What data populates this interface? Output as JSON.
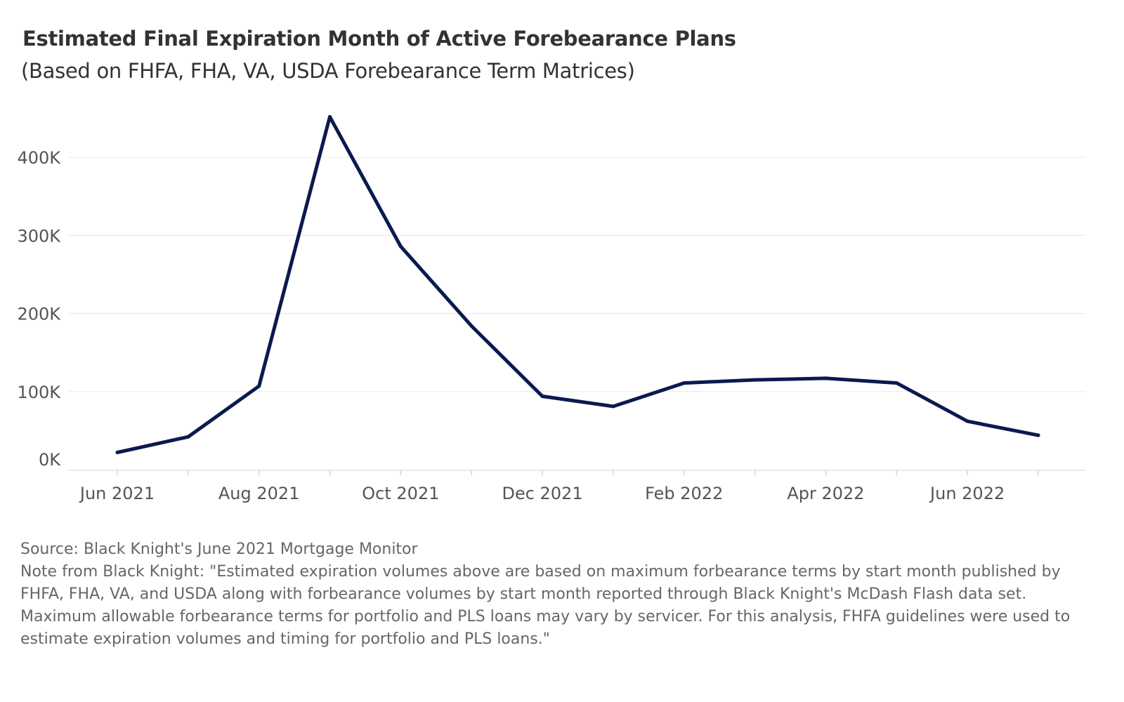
{
  "chart_data": {
    "type": "line",
    "title": "Estimated Final Expiration Month of Active Forebearance Plans",
    "subtitle": "(Based on FHFA, FHA, VA, USDA Forebearance Term Matrices)",
    "xlabel": "",
    "ylabel": "",
    "x": [
      "2021-06",
      "2021-07",
      "2021-08",
      "2021-09",
      "2021-10",
      "2021-11",
      "2021-12",
      "2022-01",
      "2022-02",
      "2022-03",
      "2022-04",
      "2022-05",
      "2022-06",
      "2022-07"
    ],
    "series": [
      {
        "values": [
          22000,
          42000,
          107000,
          452000,
          286000,
          184000,
          94000,
          81000,
          111000,
          115000,
          117000,
          111000,
          62000,
          44000
        ],
        "color": "#0a1a4f"
      }
    ],
    "x_tick_labels": [
      "Jun 2021",
      "Aug 2021",
      "Oct 2021",
      "Dec 2021",
      "Feb 2022",
      "Apr 2022",
      "Jun 2022"
    ],
    "y_ticks": [
      0,
      100000,
      200000,
      300000,
      400000
    ],
    "y_tick_labels": [
      "0K",
      "100K",
      "200K",
      "300K",
      "400K"
    ],
    "ylim": [
      0,
      452000
    ],
    "grid": true,
    "legend": "none"
  },
  "footer": {
    "source": "Source: Black Knight's June 2021 Mortgage Monitor",
    "note": "Note from Black Knight: \"Estimated expiration volumes above are based on maximum forbearance terms by start month published by FHFA, FHA, VA, and USDA along with forbearance volumes by start month reported through Black Knight's McDash Flash data set. Maximum allowable forbearance terms for portfolio and PLS loans may vary by servicer. For this analysis, FHFA guidelines were used to estimate expiration volumes and timing for portfolio and PLS loans.\""
  }
}
